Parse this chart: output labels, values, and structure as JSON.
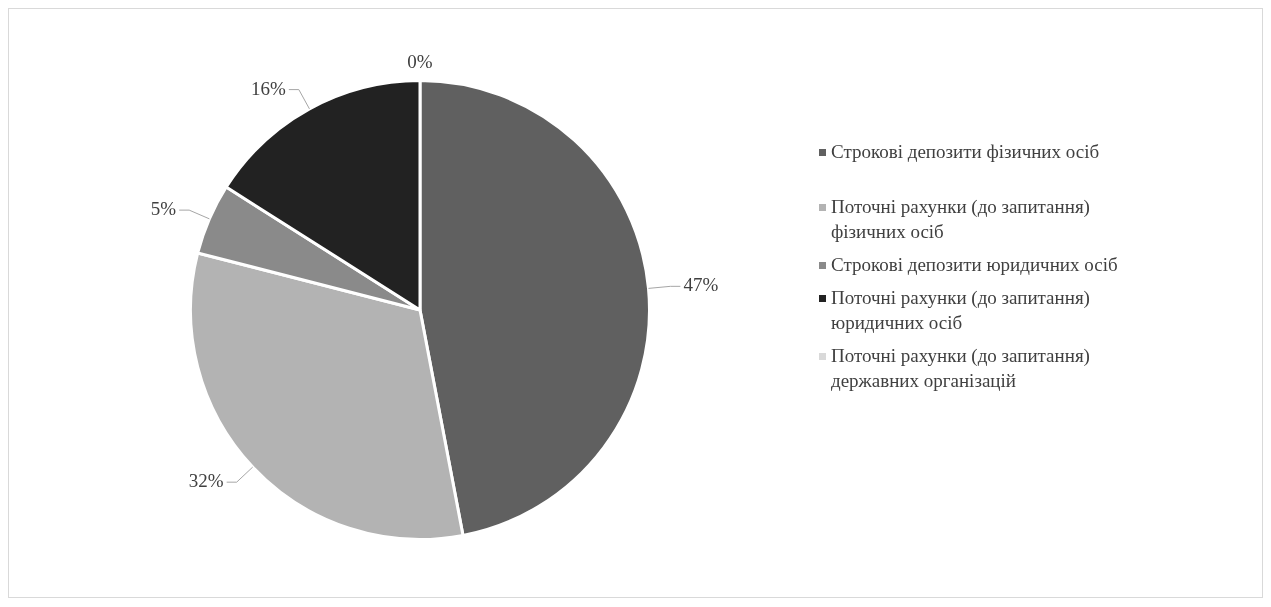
{
  "chart_data": {
    "type": "pie",
    "categories": [
      "Строкові депозити фізичних осіб",
      "Поточні рахунки (до запитання) фізичних осіб",
      "Строкові депозити юридичних осіб",
      "Поточні рахунки (до запитання) юридичних осіб",
      "Поточні рахунки (до запитання) державних організацій"
    ],
    "values": [
      47,
      32,
      5,
      16,
      0
    ],
    "value_labels": [
      "47%",
      "32%",
      "5%",
      "16%",
      "0%"
    ],
    "colors": [
      "#606060",
      "#b3b3b3",
      "#8a8a8a",
      "#222222",
      "#d9d9d9"
    ],
    "legend": "right"
  }
}
